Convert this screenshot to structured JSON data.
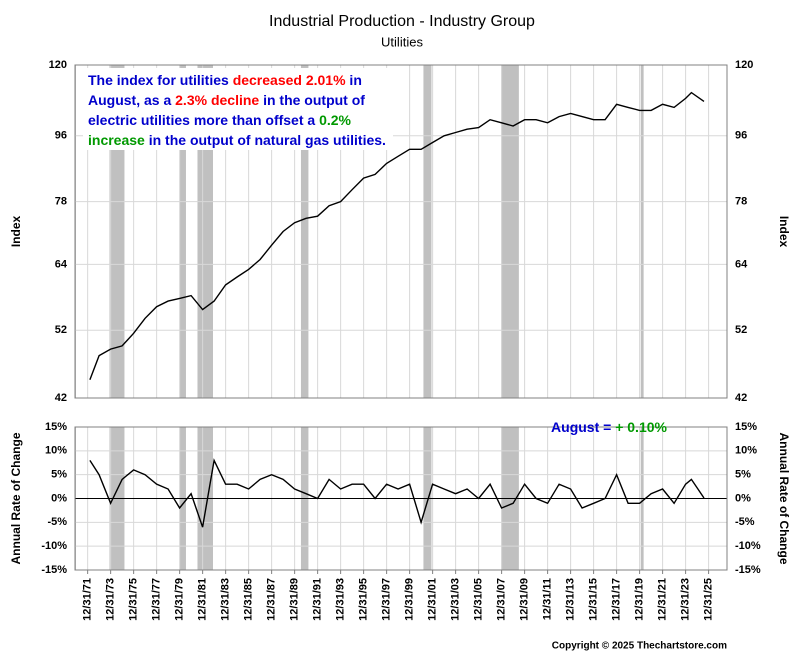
{
  "chart_data": [
    {
      "type": "line",
      "title": "Industrial Production - Industry Group",
      "subtitle": "Utilities",
      "annotation": [
        [
          {
            "text": "The index for utilities ",
            "color": "#0000cc"
          },
          {
            "text": "decreased 2.01%",
            "color": "#ff0000"
          },
          {
            "text": " in",
            "color": "#0000cc"
          }
        ],
        [
          {
            "text": "August, as a ",
            "color": "#0000cc"
          },
          {
            "text": "2.3% decline",
            "color": "#ff0000"
          },
          {
            "text": " in the output of",
            "color": "#0000cc"
          }
        ],
        [
          {
            "text": "electric utilities more than offset a ",
            "color": "#0000cc"
          },
          {
            "text": "0.2%",
            "color": "#009900"
          }
        ],
        [
          {
            "text": "increase",
            "color": "#009900"
          },
          {
            "text": " in the output of natural gas utilities.",
            "color": "#0000cc"
          }
        ]
      ],
      "ylabel": "Index",
      "log_scale": true,
      "ylim": [
        42,
        120
      ],
      "yticks": [
        42,
        52,
        64,
        78,
        96,
        120
      ],
      "xlim": [
        1970.9,
        2027.6
      ],
      "grid": true,
      "recession_color": "#c0c0c0",
      "recessions": [
        [
          1970.9,
          1970.95
        ],
        [
          1973.9,
          1975.2
        ],
        [
          1980.0,
          1980.55
        ],
        [
          1981.55,
          1982.9
        ],
        [
          1990.55,
          1991.2
        ],
        [
          2001.2,
          2001.9
        ],
        [
          2007.95,
          2009.5
        ],
        [
          2020.1,
          2020.35
        ]
      ],
      "x": [
        1972.2,
        1973,
        1974,
        1975,
        1976,
        1977,
        1978,
        1979,
        1980,
        1981,
        1982,
        1983,
        1984,
        1985,
        1986,
        1987,
        1988,
        1989,
        1990,
        1991,
        1992,
        1993,
        1994,
        1995,
        1996,
        1997,
        1998,
        1999,
        2000,
        2001,
        2002,
        2003,
        2004,
        2005,
        2006,
        2007,
        2008,
        2009,
        2010,
        2011,
        2012,
        2013,
        2014,
        2015,
        2016,
        2017,
        2018,
        2019,
        2020,
        2021,
        2022,
        2023,
        2024,
        2024.5,
        2025.6
      ],
      "series": [
        {
          "color": "#000000",
          "values": [
            44.5,
            48,
            49,
            49.5,
            51.5,
            54,
            56,
            57,
            57.5,
            58,
            55.5,
            57,
            60,
            61.5,
            63,
            65,
            68,
            71,
            73,
            74,
            74.5,
            77,
            78,
            81,
            84,
            85,
            88,
            90,
            92,
            92,
            94,
            96,
            97,
            98,
            98.5,
            101,
            100,
            99,
            101,
            101,
            100,
            102,
            103,
            102,
            101,
            101,
            106,
            105,
            104,
            104,
            106,
            105,
            108,
            110,
            107
          ]
        }
      ]
    },
    {
      "type": "line",
      "annotation": [
        [
          {
            "text": "August = ",
            "color": "#0000cc"
          },
          {
            "text": "+ 0.10%",
            "color": "#009900"
          }
        ]
      ],
      "ylabel": "Annual Rate of Change",
      "ylim": [
        -15,
        15
      ],
      "yticks": [
        {
          "value": -15,
          "label": "-15%"
        },
        {
          "value": -10,
          "label": "-10%"
        },
        {
          "value": -5,
          "label": "-5%"
        },
        {
          "value": 0,
          "label": "0%"
        },
        {
          "value": 5,
          "label": "5%"
        },
        {
          "value": 10,
          "label": "10%"
        },
        {
          "value": 15,
          "label": "15%"
        }
      ],
      "xlim": [
        1970.9,
        2027.6
      ],
      "grid": true,
      "recession_color": "#c0c0c0",
      "recessions": [
        [
          1970.9,
          1970.95
        ],
        [
          1973.9,
          1975.2
        ],
        [
          1980.0,
          1980.55
        ],
        [
          1981.55,
          1982.9
        ],
        [
          1990.55,
          1991.2
        ],
        [
          2001.2,
          2001.9
        ],
        [
          2007.95,
          2009.5
        ],
        [
          2020.1,
          2020.35
        ]
      ],
      "xticks": [
        {
          "value": 1972,
          "label": "12/31/71"
        },
        {
          "value": 1974,
          "label": "12/31/73"
        },
        {
          "value": 1976,
          "label": "12/31/75"
        },
        {
          "value": 1978,
          "label": "12/31/77"
        },
        {
          "value": 1980,
          "label": "12/31/79"
        },
        {
          "value": 1982,
          "label": "12/31/81"
        },
        {
          "value": 1984,
          "label": "12/31/83"
        },
        {
          "value": 1986,
          "label": "12/31/85"
        },
        {
          "value": 1988,
          "label": "12/31/87"
        },
        {
          "value": 1990,
          "label": "12/31/89"
        },
        {
          "value": 1992,
          "label": "12/31/91"
        },
        {
          "value": 1994,
          "label": "12/31/93"
        },
        {
          "value": 1996,
          "label": "12/31/95"
        },
        {
          "value": 1998,
          "label": "12/31/97"
        },
        {
          "value": 2000,
          "label": "12/31/99"
        },
        {
          "value": 2002,
          "label": "12/31/01"
        },
        {
          "value": 2004,
          "label": "12/31/03"
        },
        {
          "value": 2006,
          "label": "12/31/05"
        },
        {
          "value": 2008,
          "label": "12/31/07"
        },
        {
          "value": 2010,
          "label": "12/31/09"
        },
        {
          "value": 2012,
          "label": "12/31/11"
        },
        {
          "value": 2014,
          "label": "12/31/13"
        },
        {
          "value": 2016,
          "label": "12/31/15"
        },
        {
          "value": 2018,
          "label": "12/31/17"
        },
        {
          "value": 2020,
          "label": "12/31/19"
        },
        {
          "value": 2022,
          "label": "12/31/21"
        },
        {
          "value": 2024,
          "label": "12/31/23"
        },
        {
          "value": 2026,
          "label": "12/31/25"
        }
      ],
      "x": [
        1972.2,
        1973,
        1974,
        1975,
        1976,
        1977,
        1978,
        1979,
        1980,
        1981,
        1982,
        1983,
        1984,
        1985,
        1986,
        1987,
        1988,
        1989,
        1990,
        1991,
        1992,
        1993,
        1994,
        1995,
        1996,
        1997,
        1998,
        1999,
        2000,
        2001,
        2002,
        2003,
        2004,
        2005,
        2006,
        2007,
        2008,
        2009,
        2010,
        2011,
        2012,
        2013,
        2014,
        2015,
        2016,
        2017,
        2018,
        2019,
        2020,
        2021,
        2022,
        2023,
        2024,
        2024.5,
        2025.6
      ],
      "series": [
        {
          "color": "#000000",
          "values": [
            8,
            5,
            -1,
            4,
            6,
            5,
            3,
            2,
            -2,
            1,
            -6,
            8,
            3,
            3,
            2,
            4,
            5,
            4,
            2,
            1,
            0,
            4,
            2,
            3,
            3,
            0,
            3,
            2,
            3,
            -5,
            3,
            2,
            1,
            2,
            0,
            3,
            -2,
            -1,
            3,
            0,
            -1,
            3,
            2,
            -2,
            -1,
            0,
            5,
            -1,
            -1,
            1,
            2,
            -1,
            3,
            4,
            0.1
          ]
        }
      ]
    }
  ],
  "footer": "Copyright © 2025 Thechartstore.com"
}
